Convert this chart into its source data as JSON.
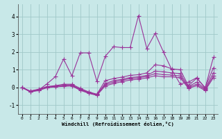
{
  "bg_color": "#c8e8e8",
  "grid_color": "#a0c8c8",
  "line_color": "#993399",
  "xlabel": "Windchill (Refroidissement éolien,°C)",
  "xlim": [
    -0.5,
    23.5
  ],
  "ylim": [
    -1.5,
    4.7
  ],
  "xticks": [
    0,
    1,
    2,
    3,
    4,
    5,
    6,
    7,
    8,
    9,
    10,
    11,
    12,
    13,
    14,
    15,
    16,
    17,
    18,
    19,
    20,
    21,
    22,
    23
  ],
  "yticks": [
    -1,
    0,
    1,
    2,
    3,
    4
  ],
  "series": [
    [
      0.0,
      -0.25,
      -0.15,
      0.2,
      0.6,
      1.6,
      0.65,
      1.95,
      1.95,
      0.35,
      1.75,
      2.3,
      2.25,
      2.25,
      4.05,
      2.2,
      3.05,
      2.0,
      1.0,
      0.2,
      0.3,
      0.55,
      -0.05,
      1.7
    ],
    [
      0.0,
      -0.2,
      -0.1,
      0.05,
      0.1,
      0.18,
      0.18,
      -0.05,
      -0.25,
      -0.38,
      0.38,
      0.5,
      0.58,
      0.68,
      0.72,
      0.82,
      1.28,
      1.22,
      1.05,
      1.0,
      0.1,
      0.52,
      0.0,
      1.1
    ],
    [
      0.0,
      -0.22,
      -0.12,
      0.02,
      0.07,
      0.12,
      0.14,
      -0.1,
      -0.28,
      -0.4,
      0.22,
      0.38,
      0.46,
      0.56,
      0.6,
      0.68,
      0.92,
      0.88,
      0.82,
      0.78,
      0.05,
      0.3,
      -0.08,
      0.82
    ],
    [
      0.0,
      -0.23,
      -0.13,
      0.01,
      0.06,
      0.1,
      0.12,
      -0.12,
      -0.3,
      -0.42,
      0.15,
      0.3,
      0.4,
      0.5,
      0.54,
      0.62,
      0.78,
      0.72,
      0.7,
      0.65,
      0.0,
      0.18,
      -0.12,
      0.65
    ],
    [
      0.0,
      -0.25,
      -0.18,
      -0.02,
      0.03,
      0.06,
      0.08,
      -0.16,
      -0.33,
      -0.45,
      0.08,
      0.22,
      0.32,
      0.42,
      0.46,
      0.54,
      0.66,
      0.6,
      0.6,
      0.55,
      -0.05,
      0.1,
      -0.18,
      0.55
    ]
  ],
  "marker": "+",
  "markersize": 4,
  "linewidth": 0.8
}
